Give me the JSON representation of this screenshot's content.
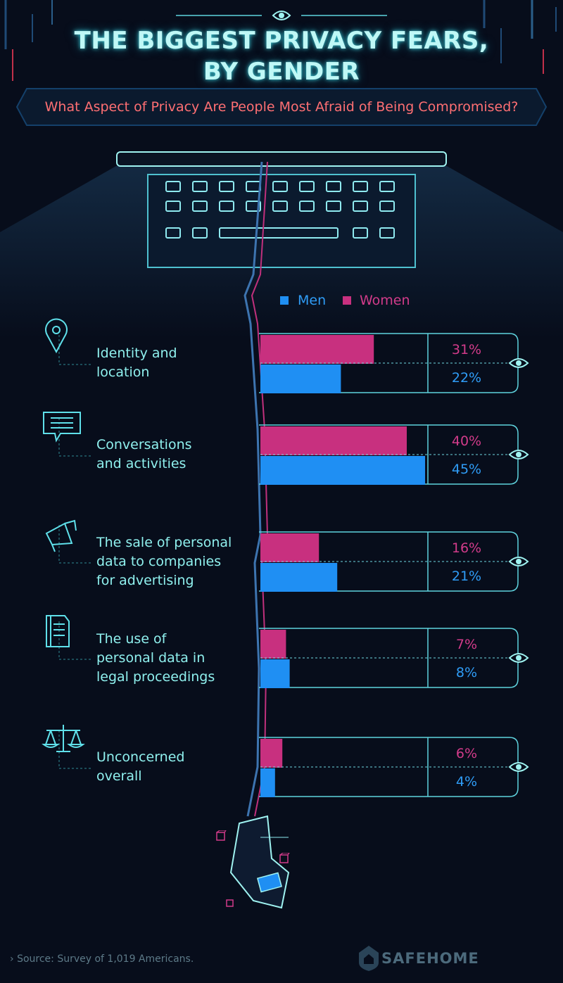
{
  "title_line1": "THE BIGGEST PRIVACY FEARS,",
  "title_line2": "BY GENDER",
  "subtitle": "What Aspect of Privacy Are People Most Afraid of Being Compromised?",
  "legend": {
    "men": "Men",
    "women": "Women"
  },
  "colors": {
    "men": "#1f8ff3",
    "women": "#c8307f",
    "men_text": "#2f9cf6",
    "women_text": "#d23b8a",
    "outline": "#5fd3de",
    "label": "#8ff0ee",
    "title": "#bff8f6",
    "subtitle": "#ff6f73",
    "background": "#070d1b"
  },
  "icons": [
    "eye-icon",
    "location-pin-icon",
    "chat-bubble-icon",
    "megaphone-icon",
    "document-icon",
    "scales-icon",
    "cube-icon",
    "credit-card-icon",
    "house-shield-icon"
  ],
  "chart_data": {
    "type": "bar",
    "orientation": "horizontal",
    "title": "THE BIGGEST PRIVACY FEARS, BY GENDER",
    "subtitle": "What Aspect of Privacy Are People Most Afraid of Being Compromised?",
    "categories": [
      "Identity and location",
      "Conversations and activities",
      "The sale of personal data to companies for advertising",
      "The use of personal data in legal proceedings",
      "Unconcerned overall"
    ],
    "category_lines": [
      [
        "Identity and",
        "location"
      ],
      [
        "Conversations",
        "and activities"
      ],
      [
        "The sale of personal",
        "data to companies",
        "for advertising"
      ],
      [
        "The use of",
        "personal data in",
        "legal proceedings"
      ],
      [
        "Unconcerned",
        "overall"
      ]
    ],
    "series": [
      {
        "name": "Women",
        "values": [
          31,
          40,
          16,
          7,
          6
        ],
        "labels": [
          "31%",
          "40%",
          "16%",
          "7%",
          "6%"
        ]
      },
      {
        "name": "Men",
        "values": [
          22,
          45,
          21,
          8,
          4
        ],
        "labels": [
          "22%",
          "45%",
          "21%",
          "8%",
          "4%"
        ]
      }
    ],
    "unit": "%",
    "xlim": [
      0,
      50
    ],
    "legend_position": "top"
  },
  "source": "Source: Survey of 1,019 Americans.",
  "brand": "SAFEHOME"
}
